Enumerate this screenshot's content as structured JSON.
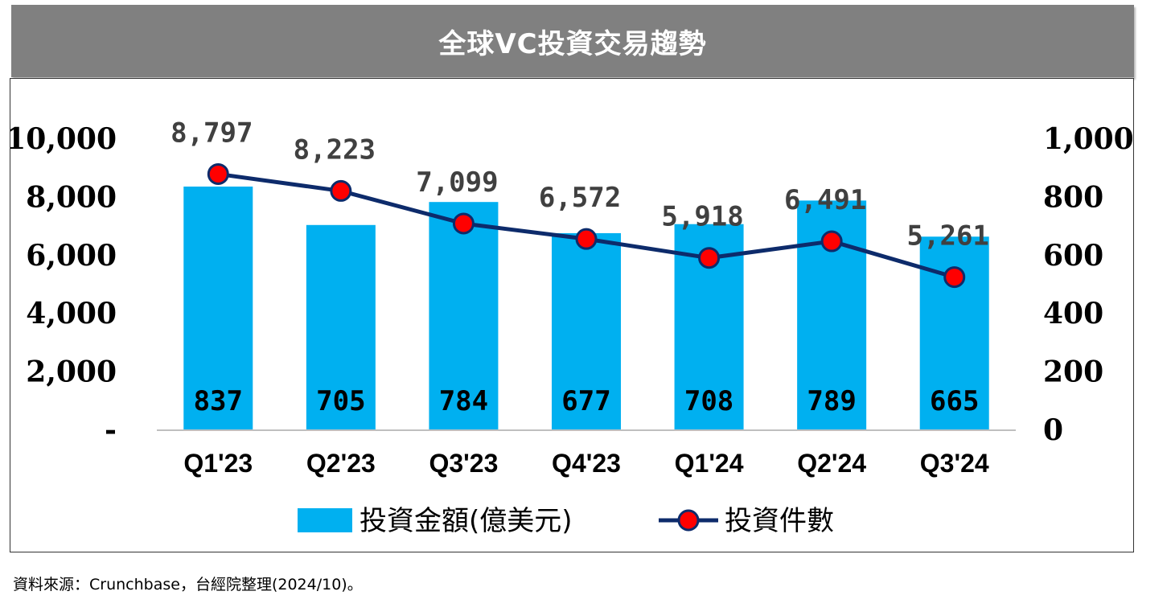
{
  "title": "全球VC投資交易趨勢",
  "source": "資料來源：Crunchbase，台經院整理(2024/10)。",
  "colors": {
    "bar": "#00B0F0",
    "line": "#0D2B6B",
    "marker": "#FF0000",
    "title_bg": "#808080"
  },
  "chart_data": {
    "type": "bar",
    "categories": [
      "Q1'23",
      "Q2'23",
      "Q3'23",
      "Q4'23",
      "Q1'24",
      "Q2'24",
      "Q3'24"
    ],
    "series": [
      {
        "name": "投資金額(億美元)",
        "type": "bar",
        "axis": "left",
        "values": [
          837,
          705,
          784,
          677,
          708,
          789,
          665
        ],
        "labels": [
          "837",
          "705",
          "784",
          "677",
          "708",
          "789",
          "665"
        ],
        "bar_heights_on_left_axis": [
          8370,
          7050,
          7840,
          6770,
          7080,
          7890,
          6650
        ]
      },
      {
        "name": "投資件數",
        "type": "line",
        "axis": "right",
        "values": [
          8797,
          8223,
          7099,
          6572,
          5918,
          6491,
          5261
        ],
        "labels": [
          "8,797",
          "8,223",
          "7,099",
          "6,572",
          "5,918",
          "6,491",
          "5,261"
        ],
        "plotted_on_right_axis": [
          880,
          822,
          710,
          657,
          592,
          649,
          526
        ]
      }
    ],
    "y_left": {
      "ylim": [
        0,
        10000
      ],
      "ticks": [
        0,
        2000,
        4000,
        6000,
        8000,
        10000
      ],
      "tick_labels": [
        "-",
        "2,000",
        "4,000",
        "6,000",
        "8,000",
        "10,000"
      ]
    },
    "y_right": {
      "ylim": [
        0,
        1000
      ],
      "ticks": [
        0,
        200,
        400,
        600,
        800,
        1000
      ],
      "tick_labels": [
        "0",
        "200",
        "400",
        "600",
        "800",
        "1,000"
      ]
    },
    "grid": false,
    "legend": "bottom"
  }
}
